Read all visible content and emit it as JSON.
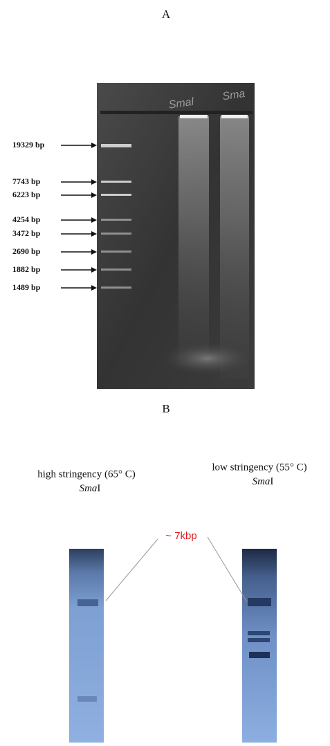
{
  "panel_a": {
    "label": "A",
    "lane_labels": [
      "Smal",
      "Sma"
    ],
    "markers": [
      "19329 bp",
      "7743 bp",
      "6223 bp",
      "4254 bp",
      "3472 bp",
      "2690 bp",
      "1882 bp",
      "1489 bp"
    ]
  },
  "panel_b": {
    "label": "B",
    "annotation": "~ 7kbp",
    "blots": [
      {
        "condition": "high stringency (65° C)",
        "enzyme": {
          "italic": "Sma",
          "roman": "I"
        }
      },
      {
        "condition": "low stringency (55° C)",
        "enzyme": {
          "italic": "Sma",
          "roman": "I"
        }
      }
    ]
  }
}
